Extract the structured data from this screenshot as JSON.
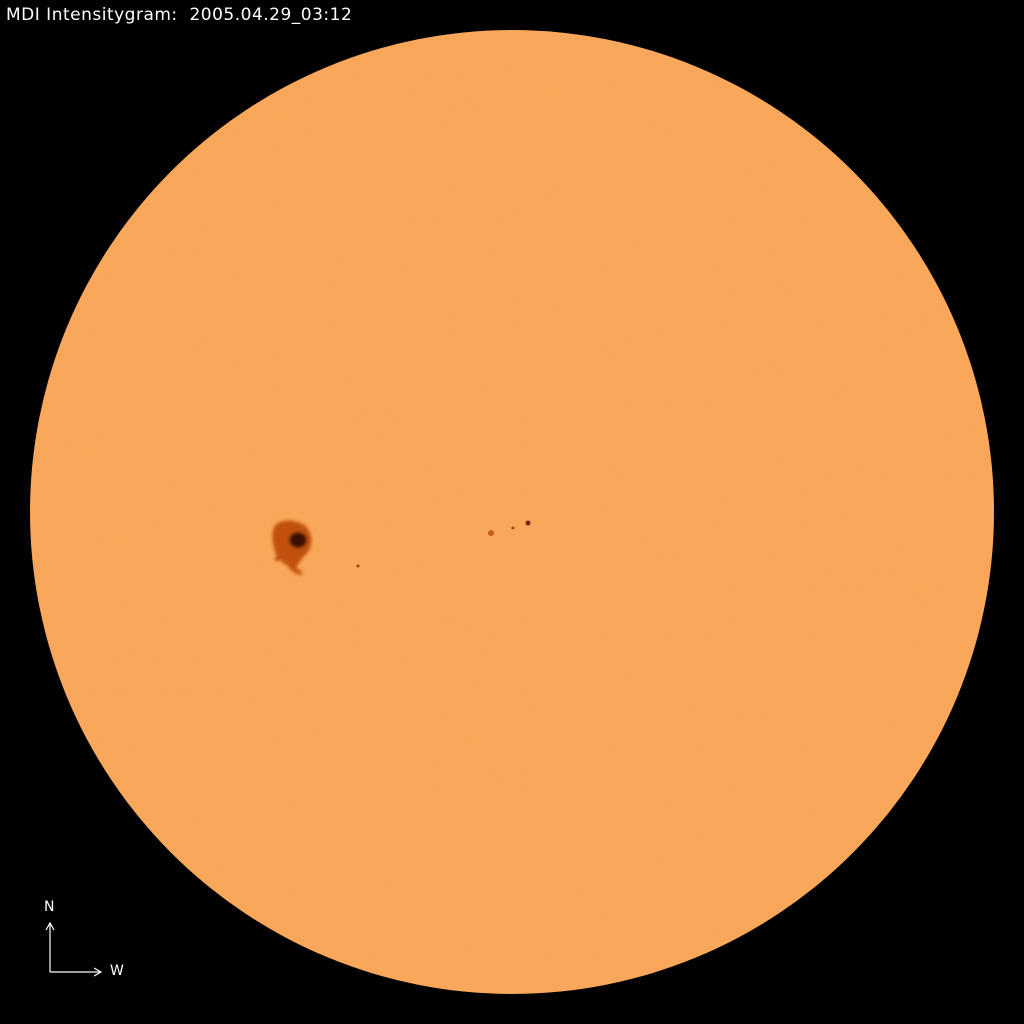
{
  "title": "MDI Intensitygram:  2005.04.29_03:12",
  "compass": {
    "north": "N",
    "west": "W"
  },
  "colors": {
    "background": "#000000",
    "disk": "#fca85a",
    "sunspot_umbra": "#3a0a00",
    "sunspot_penumbra": "#b5460e"
  }
}
